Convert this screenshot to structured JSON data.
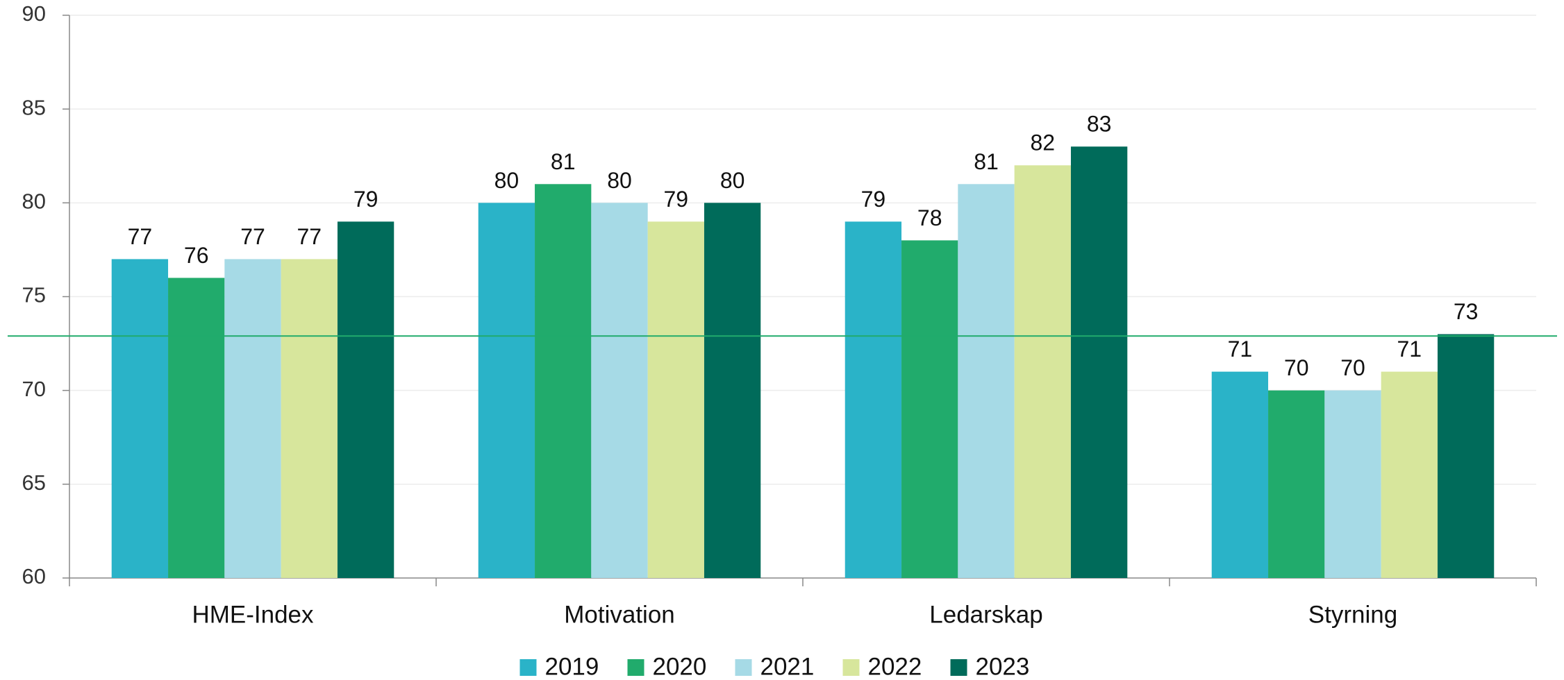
{
  "chart_data": {
    "type": "bar",
    "categories": [
      "HME-Index",
      "Motivation",
      "Ledarskap",
      "Styrning"
    ],
    "series": [
      {
        "name": "2019",
        "color": "#2ab3c8",
        "values": [
          77,
          80,
          79,
          71
        ]
      },
      {
        "name": "2020",
        "color": "#21ab6c",
        "values": [
          76,
          81,
          78,
          70
        ]
      },
      {
        "name": "2021",
        "color": "#a6dae6",
        "values": [
          77,
          80,
          81,
          70
        ]
      },
      {
        "name": "2022",
        "color": "#d7e69c",
        "values": [
          77,
          79,
          82,
          71
        ]
      },
      {
        "name": "2023",
        "color": "#006b5a",
        "values": [
          79,
          80,
          83,
          73
        ]
      }
    ],
    "ylim": [
      60,
      90
    ],
    "yticks": [
      60,
      65,
      70,
      75,
      80,
      85,
      90
    ],
    "grid": true,
    "reference_line": {
      "value": 72.9,
      "color": "#21ab6c"
    },
    "legend": "bottom"
  }
}
